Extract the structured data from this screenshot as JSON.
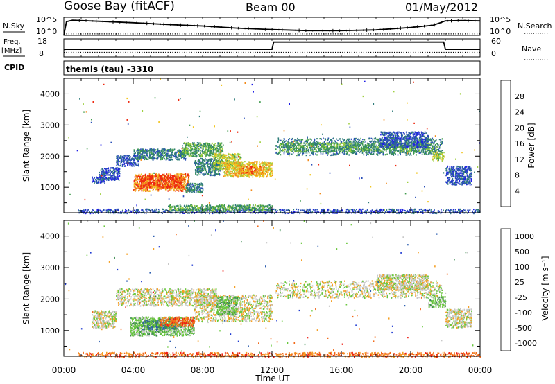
{
  "header": {
    "station": "Goose Bay (fitACF)",
    "beam": "Beam 00",
    "date": "01/May/2012"
  },
  "noise_panel": {
    "left_label": "N.Sky",
    "left_ticks": [
      "10^5",
      "10^0"
    ],
    "right_label": "N.Search",
    "right_ticks": [
      "10^5",
      "10^0"
    ]
  },
  "freq_panel": {
    "left_label_1": "Freq.",
    "left_label_2": "[MHz]",
    "left_ticks": [
      "18",
      "8"
    ],
    "right_label": "Nave",
    "right_ticks": [
      "60",
      "0"
    ]
  },
  "cpid": {
    "label": "CPID",
    "text": "themis (tau) -3310"
  },
  "chart_data": [
    {
      "type": "line",
      "panel": "noise",
      "series": [
        {
          "name": "N.Sky",
          "style": "solid",
          "x": [
            0,
            0.15,
            0.5,
            2,
            4,
            6,
            8,
            10,
            12,
            14,
            16,
            18,
            20,
            21.3,
            22,
            23,
            24
          ],
          "y": [
            0,
            3.8,
            4.2,
            3.9,
            3.5,
            3.0,
            2.6,
            2.0,
            1.6,
            1.3,
            1.3,
            1.5,
            2.2,
            2.8,
            4.0,
            4.1,
            4.0
          ]
        },
        {
          "name": "N.Search",
          "style": "dotted",
          "x": [
            0,
            24
          ],
          "y": [
            0.4,
            0.4
          ]
        }
      ],
      "xlim": [
        0,
        24
      ],
      "ylim": [
        0,
        5
      ]
    },
    {
      "type": "line",
      "panel": "frequency",
      "series": [
        {
          "name": "Freq.",
          "style": "solid",
          "x": [
            0,
            0.1,
            12,
            12.1,
            21.9,
            22,
            24
          ],
          "y": [
            12,
            12.2,
            12.2,
            16.2,
            16.2,
            12.2,
            12.2
          ]
        },
        {
          "name": "Nave",
          "style": "dotted",
          "x": [
            0,
            24
          ],
          "y": [
            10.5,
            10.5
          ]
        }
      ],
      "ylim": [
        8,
        18
      ]
    },
    {
      "type": "heatmap",
      "panel": "power",
      "xlabel": "",
      "ylabel": "Slant Range [km]",
      "xlim": [
        0,
        24
      ],
      "ylim": [
        180,
        4500
      ],
      "yticks": [
        1000,
        2000,
        3000,
        4000
      ],
      "colorbar": {
        "label": "Power [dB]",
        "ticks": [
          "4",
          "8",
          "12",
          "16",
          "20",
          "24",
          "28"
        ],
        "colors": [
          "#1e1ee6",
          "#2a4fb8",
          "#2f7c7a",
          "#3f9b4c",
          "#9fd040",
          "#f2c51e",
          "#f28a1a",
          "#ee2a10"
        ]
      },
      "regions": [
        {
          "t": [
            1.6,
            2.4
          ],
          "r": [
            1150,
            1350
          ],
          "c": 1
        },
        {
          "t": [
            2.0,
            3.2
          ],
          "r": [
            1250,
            1650
          ],
          "c": 1
        },
        {
          "t": [
            3.0,
            4.3
          ],
          "r": [
            1700,
            2050
          ],
          "c": 1
        },
        {
          "t": [
            4.0,
            7.0
          ],
          "r": [
            1900,
            2250
          ],
          "c": 2
        },
        {
          "t": [
            6.8,
            9.2
          ],
          "r": [
            2000,
            2450
          ],
          "c": 3
        },
        {
          "t": [
            7.5,
            9.0
          ],
          "r": [
            1400,
            1950
          ],
          "c": 2
        },
        {
          "t": [
            8.6,
            10.2
          ],
          "r": [
            1600,
            2100
          ],
          "c": 4
        },
        {
          "t": [
            9.2,
            12.0
          ],
          "r": [
            1350,
            1850
          ],
          "c": 5
        },
        {
          "t": [
            10.0,
            11.5
          ],
          "r": [
            1450,
            1700
          ],
          "c": 6
        },
        {
          "t": [
            4.0,
            7.2
          ],
          "r": [
            900,
            1450
          ],
          "c": 6
        },
        {
          "t": [
            4.3,
            6.8
          ],
          "r": [
            1000,
            1400
          ],
          "c": 7
        },
        {
          "t": [
            7.0,
            8.0
          ],
          "r": [
            850,
            1150
          ],
          "c": 2
        },
        {
          "t": [
            12.2,
            21.8
          ],
          "r": [
            2050,
            2600
          ],
          "c": 2
        },
        {
          "t": [
            12.4,
            21.5
          ],
          "r": [
            2150,
            2450
          ],
          "c": 3
        },
        {
          "t": [
            18.2,
            21.0
          ],
          "r": [
            2300,
            2800
          ],
          "c": 1
        },
        {
          "t": [
            21.2,
            21.9
          ],
          "r": [
            1850,
            2150
          ],
          "c": 4
        },
        {
          "t": [
            22.0,
            23.5
          ],
          "r": [
            1100,
            1700
          ],
          "c": 1
        },
        {
          "t": [
            0.8,
            24
          ],
          "r": [
            180,
            320
          ],
          "c": 1
        },
        {
          "t": [
            6.0,
            12.0
          ],
          "r": [
            250,
            450
          ],
          "c": 3
        }
      ]
    },
    {
      "type": "heatmap",
      "panel": "velocity",
      "xlabel": "Time UT",
      "ylabel": "Slant Range [km]",
      "xlim": [
        0,
        24
      ],
      "ylim": [
        180,
        4500
      ],
      "xticks": [
        "00:00",
        "04:00",
        "08:00",
        "12:00",
        "16:00",
        "20:00",
        "00:00"
      ],
      "yticks": [
        1000,
        2000,
        3000,
        4000
      ],
      "colorbar": {
        "label": "Velocity [m s⁻¹]",
        "ticks": [
          "1000",
          "500",
          "100",
          "25",
          "-25",
          "-100",
          "-500",
          "-1000"
        ],
        "colors": [
          "#1e3ad2",
          "#2e5fb0",
          "#3d8c50",
          "#69c83c",
          "#c8c8c8",
          "#f5a025",
          "#f26a1a",
          "#ee1e14"
        ]
      },
      "regions": [
        {
          "t": [
            1.6,
            3.0
          ],
          "r": [
            1100,
            1650
          ],
          "c": 4
        },
        {
          "t": [
            3.0,
            8.8
          ],
          "r": [
            1800,
            2350
          ],
          "c": 4
        },
        {
          "t": [
            7.5,
            12.0
          ],
          "r": [
            1300,
            2150
          ],
          "c": 4
        },
        {
          "t": [
            8.8,
            10.0
          ],
          "r": [
            1500,
            2100
          ],
          "c": 3
        },
        {
          "t": [
            3.8,
            7.5
          ],
          "r": [
            850,
            1450
          ],
          "c": 3
        },
        {
          "t": [
            4.5,
            6.5
          ],
          "r": [
            1050,
            1350
          ],
          "c": 2
        },
        {
          "t": [
            5.5,
            7.5
          ],
          "r": [
            1150,
            1450
          ],
          "c": 6
        },
        {
          "t": [
            12.2,
            21.8
          ],
          "r": [
            2050,
            2600
          ],
          "c": 4
        },
        {
          "t": [
            18.0,
            21.0
          ],
          "r": [
            2300,
            2800
          ],
          "c": 4
        },
        {
          "t": [
            21.0,
            22.0
          ],
          "r": [
            1750,
            2100
          ],
          "c": 3
        },
        {
          "t": [
            22.0,
            23.5
          ],
          "r": [
            1100,
            1700
          ],
          "c": 4
        },
        {
          "t": [
            0.8,
            24
          ],
          "r": [
            180,
            320
          ],
          "c": 6
        }
      ]
    }
  ]
}
